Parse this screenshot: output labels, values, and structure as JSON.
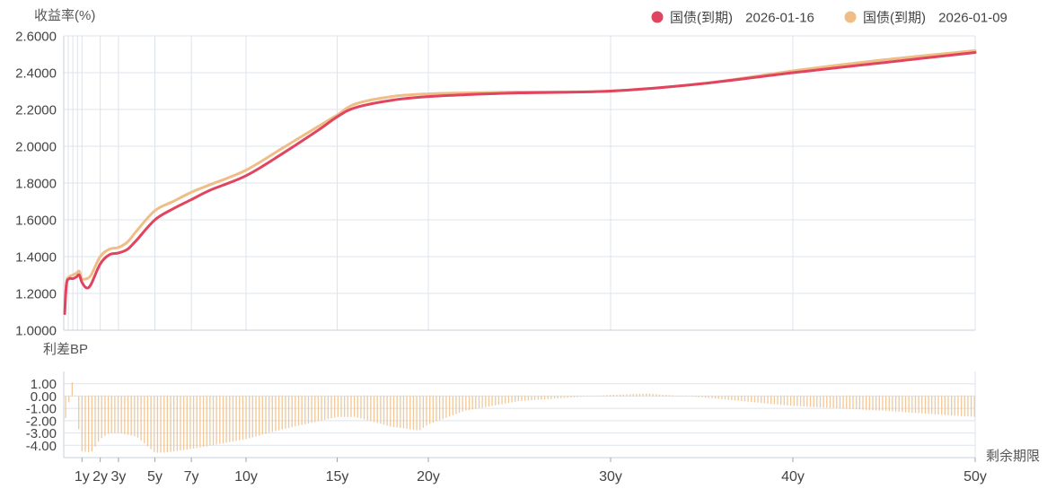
{
  "chart_data": [
    {
      "type": "line",
      "ylabel": "收益率(%)",
      "ylim": [
        1.0,
        2.6
      ],
      "yticks": [
        "1.0000",
        "1.2000",
        "1.4000",
        "1.6000",
        "1.8000",
        "2.0000",
        "2.2000",
        "2.4000",
        "2.6000"
      ],
      "x_unit": "years",
      "xlim": [
        0,
        50
      ],
      "vertical_grid_at": [
        0.25,
        0.5,
        0.75,
        1,
        2,
        3,
        5,
        7,
        10,
        15,
        20,
        30,
        40,
        50
      ],
      "legend_position": "top-right",
      "series": [
        {
          "name": "国债(到期)",
          "date": "2026-01-16",
          "color": "#e0445f",
          "points": [
            [
              0.05,
              1.09
            ],
            [
              0.15,
              1.25
            ],
            [
              0.3,
              1.28
            ],
            [
              0.5,
              1.28
            ],
            [
              0.7,
              1.29
            ],
            [
              0.85,
              1.3
            ],
            [
              1.0,
              1.26
            ],
            [
              1.25,
              1.23
            ],
            [
              1.5,
              1.25
            ],
            [
              2.0,
              1.36
            ],
            [
              2.5,
              1.41
            ],
            [
              3.0,
              1.42
            ],
            [
              3.5,
              1.44
            ],
            [
              4.0,
              1.49
            ],
            [
              5.0,
              1.6
            ],
            [
              6.0,
              1.66
            ],
            [
              7.0,
              1.71
            ],
            [
              8.0,
              1.76
            ],
            [
              10.0,
              1.84
            ],
            [
              12.0,
              1.96
            ],
            [
              14.0,
              2.09
            ],
            [
              15.0,
              2.16
            ],
            [
              16.0,
              2.21
            ],
            [
              18.0,
              2.25
            ],
            [
              20.0,
              2.27
            ],
            [
              22.0,
              2.28
            ],
            [
              25.0,
              2.29
            ],
            [
              30.0,
              2.3
            ],
            [
              35.0,
              2.34
            ],
            [
              40.0,
              2.4
            ],
            [
              45.0,
              2.455
            ],
            [
              50.0,
              2.51
            ]
          ]
        },
        {
          "name": "国债(到期)",
          "date": "2026-01-09",
          "color": "#efbe87",
          "points": [
            [
              0.05,
              1.1
            ],
            [
              0.15,
              1.26
            ],
            [
              0.3,
              1.29
            ],
            [
              0.5,
              1.3
            ],
            [
              0.7,
              1.31
            ],
            [
              0.85,
              1.32
            ],
            [
              1.0,
              1.28
            ],
            [
              1.25,
              1.28
            ],
            [
              1.5,
              1.3
            ],
            [
              2.0,
              1.4
            ],
            [
              2.5,
              1.44
            ],
            [
              3.0,
              1.45
            ],
            [
              3.5,
              1.48
            ],
            [
              4.0,
              1.54
            ],
            [
              5.0,
              1.65
            ],
            [
              6.0,
              1.7
            ],
            [
              7.0,
              1.75
            ],
            [
              8.0,
              1.79
            ],
            [
              10.0,
              1.87
            ],
            [
              12.0,
              1.99
            ],
            [
              14.0,
              2.11
            ],
            [
              15.0,
              2.17
            ],
            [
              16.0,
              2.23
            ],
            [
              18.0,
              2.27
            ],
            [
              20.0,
              2.285
            ],
            [
              22.0,
              2.29
            ],
            [
              25.0,
              2.295
            ],
            [
              30.0,
              2.3
            ],
            [
              35.0,
              2.34
            ],
            [
              40.0,
              2.41
            ],
            [
              45.0,
              2.47
            ],
            [
              50.0,
              2.52
            ]
          ]
        }
      ]
    },
    {
      "type": "bar",
      "ylabel": "利差BP",
      "xlabel": "剩余期限",
      "ylim": [
        -5,
        2
      ],
      "yticks": [
        "-4.00",
        "-3.00",
        "-2.00",
        "-1.00",
        "0.00",
        "1.00"
      ],
      "xticks": [
        "1y",
        "2y",
        "3y",
        "5y",
        "7y",
        "10y",
        "15y",
        "20y",
        "30y",
        "40y",
        "50y"
      ],
      "xtick_values": [
        1,
        2,
        3,
        5,
        7,
        10,
        15,
        20,
        30,
        40,
        50
      ],
      "x_unit": "years",
      "xlim": [
        0,
        50
      ],
      "color": "#efbe87",
      "spread_points": [
        [
          0,
          -2.0
        ],
        [
          0.1,
          -1.8
        ],
        [
          0.25,
          -0.9
        ],
        [
          0.4,
          1.0
        ],
        [
          0.5,
          1.2
        ],
        [
          0.6,
          0.8
        ],
        [
          0.75,
          -2.0
        ],
        [
          1.0,
          -4.5
        ],
        [
          1.5,
          -4.6
        ],
        [
          2.0,
          -3.5
        ],
        [
          2.5,
          -3.0
        ],
        [
          3.0,
          -3.0
        ],
        [
          4.0,
          -3.3
        ],
        [
          5.0,
          -4.6
        ],
        [
          5.5,
          -4.6
        ],
        [
          7.0,
          -4.3
        ],
        [
          10.0,
          -3.5
        ],
        [
          12.0,
          -2.7
        ],
        [
          15.0,
          -1.7
        ],
        [
          16.0,
          -1.7
        ],
        [
          18.0,
          -2.5
        ],
        [
          19.5,
          -2.8
        ],
        [
          20.0,
          -2.3
        ],
        [
          22.0,
          -1.2
        ],
        [
          25.0,
          -0.4
        ],
        [
          30.0,
          0.1
        ],
        [
          32.0,
          0.2
        ],
        [
          35.0,
          -0.1
        ],
        [
          40.0,
          -0.8
        ],
        [
          45.0,
          -1.2
        ],
        [
          50.0,
          -1.7
        ]
      ]
    }
  ]
}
